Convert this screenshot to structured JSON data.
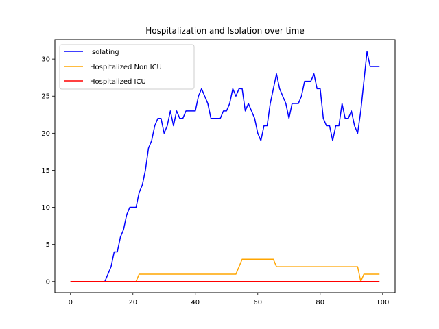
{
  "chart_data": {
    "type": "line",
    "title": "Hospitalization and Isolation over time",
    "xlabel": "",
    "ylabel": "",
    "xlim": [
      -5,
      104
    ],
    "ylim": [
      -1.5,
      32.6
    ],
    "xticks": [
      0,
      20,
      40,
      60,
      80,
      100
    ],
    "yticks": [
      0,
      5,
      10,
      15,
      20,
      25,
      30
    ],
    "grid": false,
    "legend_position": "upper-left",
    "series": [
      {
        "name": "Isolating",
        "color": "#0000ff",
        "x": [
          0,
          1,
          2,
          3,
          4,
          5,
          6,
          7,
          8,
          9,
          10,
          11,
          12,
          13,
          14,
          15,
          16,
          17,
          18,
          19,
          20,
          21,
          22,
          23,
          24,
          25,
          26,
          27,
          28,
          29,
          30,
          31,
          32,
          33,
          34,
          35,
          36,
          37,
          38,
          39,
          40,
          41,
          42,
          43,
          44,
          45,
          46,
          47,
          48,
          49,
          50,
          51,
          52,
          53,
          54,
          55,
          56,
          57,
          58,
          59,
          60,
          61,
          62,
          63,
          64,
          65,
          66,
          67,
          68,
          69,
          70,
          71,
          72,
          73,
          74,
          75,
          76,
          77,
          78,
          79,
          80,
          81,
          82,
          83,
          84,
          85,
          86,
          87,
          88,
          89,
          90,
          91,
          92,
          93,
          94,
          95,
          96,
          97,
          98,
          99
        ],
        "values": [
          0,
          0,
          0,
          0,
          0,
          0,
          0,
          0,
          0,
          0,
          0,
          0,
          1,
          2,
          4,
          4,
          6,
          7,
          9,
          10,
          10,
          10,
          12,
          13,
          15,
          18,
          19,
          21,
          22,
          22,
          20,
          21,
          23,
          21,
          23,
          22,
          22,
          23,
          23,
          23,
          23,
          25,
          26,
          25,
          24,
          22,
          22,
          22,
          22,
          23,
          23,
          24,
          26,
          25,
          26,
          26,
          23,
          24,
          23,
          22,
          20,
          19,
          21,
          21,
          24,
          26,
          28,
          26,
          25,
          24,
          22,
          24,
          24,
          24,
          25,
          27,
          27,
          27,
          28,
          26,
          26,
          22,
          21,
          21,
          19,
          21,
          21,
          24,
          22,
          22,
          23,
          21,
          20,
          23,
          27,
          31,
          29,
          29,
          29,
          29
        ]
      },
      {
        "name": "Hospitalized Non ICU",
        "color": "#ffa500",
        "x": [
          0,
          1,
          2,
          3,
          4,
          5,
          6,
          7,
          8,
          9,
          10,
          11,
          12,
          13,
          14,
          15,
          16,
          17,
          18,
          19,
          20,
          21,
          22,
          23,
          24,
          25,
          26,
          27,
          28,
          29,
          30,
          31,
          32,
          33,
          34,
          35,
          36,
          37,
          38,
          39,
          40,
          41,
          42,
          43,
          44,
          45,
          46,
          47,
          48,
          49,
          50,
          51,
          52,
          53,
          54,
          55,
          56,
          57,
          58,
          59,
          60,
          61,
          62,
          63,
          64,
          65,
          66,
          67,
          68,
          69,
          70,
          71,
          72,
          73,
          74,
          75,
          76,
          77,
          78,
          79,
          80,
          81,
          82,
          83,
          84,
          85,
          86,
          87,
          88,
          89,
          90,
          91,
          92,
          93,
          94,
          95,
          96,
          97,
          98,
          99
        ],
        "values": [
          0,
          0,
          0,
          0,
          0,
          0,
          0,
          0,
          0,
          0,
          0,
          0,
          0,
          0,
          0,
          0,
          0,
          0,
          0,
          0,
          0,
          0,
          1,
          1,
          1,
          1,
          1,
          1,
          1,
          1,
          1,
          1,
          1,
          1,
          1,
          1,
          1,
          1,
          1,
          1,
          1,
          1,
          1,
          1,
          1,
          1,
          1,
          1,
          1,
          1,
          1,
          1,
          1,
          1,
          2,
          3,
          3,
          3,
          3,
          3,
          3,
          3,
          3,
          3,
          3,
          3,
          2,
          2,
          2,
          2,
          2,
          2,
          2,
          2,
          2,
          2,
          2,
          2,
          2,
          2,
          2,
          2,
          2,
          2,
          2,
          2,
          2,
          2,
          2,
          2,
          2,
          2,
          2,
          0,
          1,
          1,
          1,
          1,
          1,
          1
        ]
      },
      {
        "name": "Hospitalized ICU",
        "color": "#ff0000",
        "x": [
          0,
          99
        ],
        "values": [
          0,
          0
        ]
      }
    ]
  }
}
